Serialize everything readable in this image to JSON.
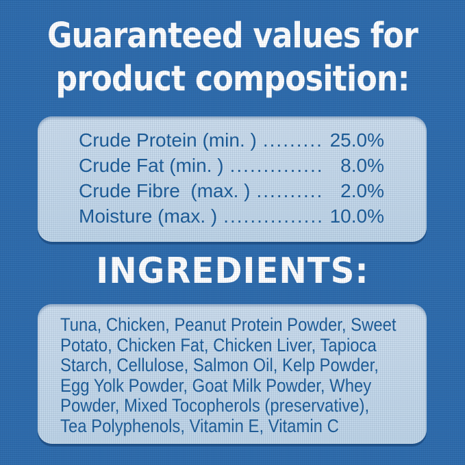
{
  "header": {
    "line1": "Guaranteed values for",
    "line2": "product composition:"
  },
  "composition": {
    "rows": [
      {
        "label": "Crude Protein (min. )",
        "dots": "............",
        "value": "25.0%"
      },
      {
        "label": "Crude Fat (min. )",
        "dots": "....................",
        "value": "8.0%"
      },
      {
        "label": "Crude Fibre  (max. )",
        "dots": "..............",
        "value": "2.0%"
      },
      {
        "label": "Moisture (max. )",
        "dots": "..................",
        "value": "10.0%"
      }
    ]
  },
  "ingredients": {
    "heading": "INGREDIENTS:",
    "lines": [
      "Tuna, Chicken, Peanut Protein Powder, Sweet",
      "Potato, Chicken Fat, Chicken Liver, Tapioca",
      "Starch, Cellulose, Salmon Oil, Kelp Powder,",
      "Egg Yolk Powder, Goat Milk Powder, Whey",
      "Powder, Mixed Tocopherols (preservative),",
      "Tea Polyphenols, Vitamin E, Vitamin C"
    ],
    "full_text": "Tuna, Chicken, Peanut Protein Powder, Sweet Potato, Chicken Fat, Chicken Liver, Tapioca Starch, Cellulose, Salmon Oil, Kelp Powder, Egg Yolk Powder, Goat Milk Powder, Whey Powder, Mixed Tocopherols (preservative), Tea Polyphenols, Vitamin E, Vitamin C"
  },
  "colors": {
    "background": "#2d6bac",
    "panel": "#c3d7e8",
    "text_dark_blue": "#1b5b97",
    "heading_white": "#ffffff"
  }
}
